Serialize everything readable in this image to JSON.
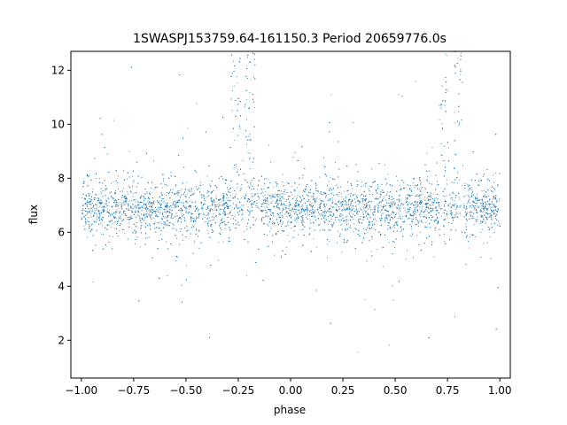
{
  "chart_data": {
    "type": "scatter",
    "title": "1SWASPJ153759.64-161150.3 Period 20659776.0s",
    "xlabel": "phase",
    "ylabel": "flux",
    "xlim": [
      -1.05,
      1.05
    ],
    "ylim": [
      0.6,
      12.7
    ],
    "xticks": [
      -1.0,
      -0.75,
      -0.5,
      -0.25,
      0.0,
      0.25,
      0.5,
      0.75,
      1.0
    ],
    "xtick_labels": [
      "−1.00",
      "−0.75",
      "−0.50",
      "−0.25",
      "0.00",
      "0.25",
      "0.50",
      "0.75",
      "1.00"
    ],
    "yticks": [
      2,
      4,
      6,
      8,
      10,
      12
    ],
    "ytick_labels": [
      "2",
      "4",
      "6",
      "8",
      "10",
      "12"
    ],
    "grid": false,
    "legend": "none",
    "marker_color": "#1f77b4",
    "series": [
      {
        "phase_range": [
          -1.0,
          1.0
        ],
        "baseline_flux": 6.9,
        "typical_scatter": 0.5,
        "flare_events": [
          {
            "phase": -0.265,
            "peak_flux": 12.7
          },
          {
            "phase": -0.195,
            "peak_flux": 12.7
          },
          {
            "phase": 0.735,
            "peak_flux": 12.7
          },
          {
            "phase": 0.805,
            "peak_flux": 12.7
          }
        ],
        "min_flux": 1.1,
        "max_flux": 12.7
      }
    ]
  }
}
